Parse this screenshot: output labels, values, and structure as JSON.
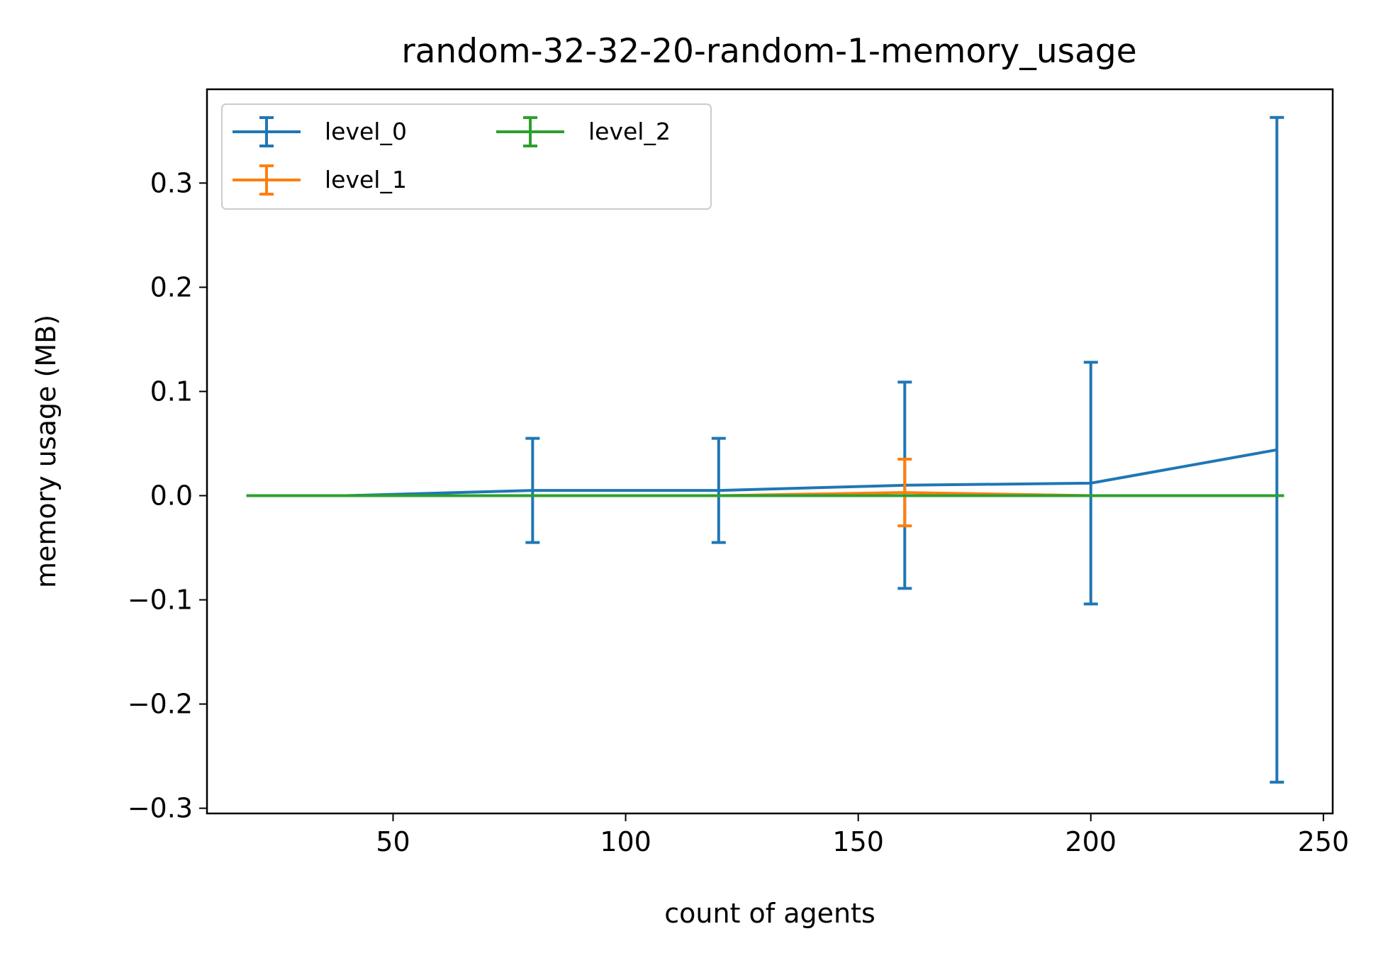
{
  "chart_data": {
    "type": "line",
    "title": "random-32-32-20-random-1-memory_usage",
    "xlabel": "count of agents",
    "ylabel": "memory usage (MB)",
    "xlim": [
      10,
      252
    ],
    "ylim": [
      -0.305,
      0.39
    ],
    "xticks": [
      50,
      100,
      150,
      200,
      250
    ],
    "xtick_labels": [
      "50",
      "100",
      "150",
      "200",
      "250"
    ],
    "yticks": [
      -0.3,
      -0.2,
      -0.1,
      0.0,
      0.1,
      0.2,
      0.3
    ],
    "ytick_labels": [
      "−0.3",
      "−0.2",
      "−0.1",
      "0.0",
      "0.1",
      "0.2",
      "0.3"
    ],
    "grid": false,
    "legend": {
      "placement": "top-left",
      "columns": 2
    },
    "series": [
      {
        "name": "level_0",
        "color": "#1f77b4",
        "x": [
          20,
          40,
          80,
          120,
          160,
          200,
          240
        ],
        "y": [
          0.0,
          0.0,
          0.005,
          0.005,
          0.01,
          0.012,
          0.044
        ],
        "err": [
          0.0,
          0.0,
          0.05,
          0.05,
          0.099,
          0.116,
          0.319
        ]
      },
      {
        "name": "level_1",
        "color": "#ff7f0e",
        "x": [
          20,
          40,
          80,
          120,
          160,
          200,
          240
        ],
        "y": [
          0.0,
          0.0,
          0.0,
          0.0,
          0.003,
          0.0,
          0.0
        ],
        "err": [
          0.0,
          0.0,
          0.0,
          0.0,
          0.032,
          0.0,
          0.0
        ]
      },
      {
        "name": "level_2",
        "color": "#2ca02c",
        "x": [
          20,
          40,
          80,
          120,
          160,
          200,
          240
        ],
        "y": [
          0.0,
          0.0,
          0.0,
          0.0,
          0.0,
          0.0,
          0.0
        ],
        "err": [
          0.0,
          0.0,
          0.0,
          0.0,
          0.0,
          0.0,
          0.0
        ]
      }
    ]
  }
}
